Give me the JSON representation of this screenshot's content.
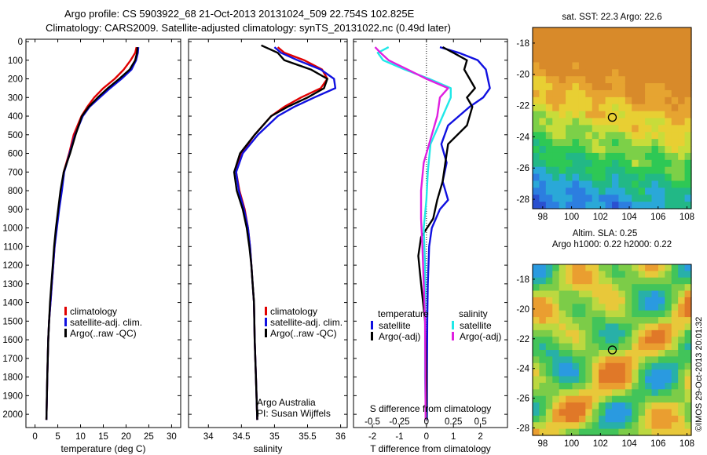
{
  "header": {
    "line1": "Argo profile: CS 5903922_68 21-Oct-2013 20131024_509 22.754S 102.825E",
    "line2": "Climatology: CARS2009. Satellite-adjusted climatology: synTS_20131022.nc (0.49d later)"
  },
  "colors": {
    "climatology": "#e00000",
    "satellite": "#1010e0",
    "argo": "#000000",
    "sat_salinity": "#20e8e8",
    "argo_salinity": "#e020e0"
  },
  "chart_data": [
    {
      "type": "line",
      "xlabel": "temperature (deg C)",
      "xlim": [
        -2,
        32
      ],
      "xticks": [
        0,
        5,
        10,
        15,
        20,
        25,
        30
      ],
      "ylim": [
        0,
        2050
      ],
      "yticks": [
        0,
        100,
        200,
        300,
        400,
        500,
        600,
        700,
        800,
        900,
        1000,
        1100,
        1200,
        1300,
        1400,
        1500,
        1600,
        1700,
        1800,
        1900,
        2000
      ],
      "legend": [
        "climatology",
        "satellite-adj. clim.",
        "Argo(..raw -QC)"
      ],
      "series": [
        {
          "name": "climatology",
          "color": "#e00000",
          "x": [
            22.3,
            22.0,
            21.0,
            19.5,
            17.5,
            15.0,
            13.0,
            11.5,
            10.2,
            8.5,
            7.5,
            6.3,
            5.8,
            5.2,
            4.7,
            4.3,
            4.0,
            3.7,
            3.4,
            3.1,
            2.9,
            2.7,
            2.5
          ],
          "y": [
            30,
            60,
            100,
            150,
            200,
            250,
            300,
            350,
            400,
            500,
            600,
            700,
            800,
            900,
            1000,
            1100,
            1200,
            1300,
            1400,
            1500,
            1600,
            1800,
            2030
          ]
        },
        {
          "name": "satellite-adj. clim.",
          "color": "#1010e0",
          "x": [
            22.7,
            22.6,
            22.2,
            21.2,
            19.0,
            16.5,
            14.2,
            12.0,
            10.5,
            8.8,
            7.6,
            6.4,
            5.9,
            5.3,
            4.8,
            4.3,
            4.0,
            3.7,
            3.4,
            3.1,
            2.9,
            2.7,
            2.5
          ],
          "y": [
            30,
            60,
            100,
            150,
            200,
            250,
            300,
            350,
            400,
            500,
            600,
            700,
            800,
            900,
            1000,
            1100,
            1200,
            1300,
            1400,
            1500,
            1600,
            1800,
            2030
          ]
        },
        {
          "name": "Argo(..raw -QC)",
          "color": "#000000",
          "x": [
            22.5,
            22.4,
            22.0,
            20.8,
            18.5,
            16.0,
            13.8,
            11.8,
            10.3,
            8.9,
            7.7,
            6.3,
            5.6,
            5.1,
            4.6,
            4.2,
            3.9,
            3.6,
            3.3,
            3.1,
            2.9,
            2.7,
            2.5
          ],
          "y": [
            30,
            60,
            100,
            150,
            200,
            250,
            300,
            350,
            400,
            500,
            600,
            700,
            800,
            900,
            1000,
            1100,
            1200,
            1300,
            1400,
            1500,
            1600,
            1800,
            2030
          ]
        }
      ]
    },
    {
      "type": "line",
      "xlabel": "salinity",
      "xlim": [
        33.7,
        36.1
      ],
      "xticks": [
        34,
        34.5,
        35,
        35.5,
        36
      ],
      "ylim": [
        0,
        2050
      ],
      "legend": [
        "climatology",
        "satellite-adj. clim.",
        "Argo(..raw -QC)"
      ],
      "annotation": [
        "Argo Australia",
        "PI: Susan Wijffels"
      ],
      "series": [
        {
          "name": "climatology",
          "color": "#e00000",
          "x": [
            35.05,
            35.15,
            35.45,
            35.72,
            35.8,
            35.7,
            35.4,
            35.15,
            34.95,
            34.7,
            34.5,
            34.42,
            34.47,
            34.55,
            34.6,
            34.63,
            34.65,
            34.67,
            34.69,
            34.7,
            34.72,
            34.74
          ],
          "y": [
            30,
            60,
            100,
            150,
            200,
            250,
            300,
            350,
            400,
            500,
            600,
            700,
            800,
            900,
            1000,
            1100,
            1200,
            1300,
            1400,
            1600,
            1800,
            2030
          ]
        },
        {
          "name": "satellite-adj. clim.",
          "color": "#1010e0",
          "x": [
            35.0,
            35.1,
            35.35,
            35.7,
            35.9,
            35.92,
            35.6,
            35.3,
            35.05,
            34.75,
            34.52,
            34.42,
            34.46,
            34.54,
            34.6,
            34.63,
            34.65,
            34.67,
            34.69,
            34.7,
            34.72,
            34.74
          ],
          "y": [
            30,
            60,
            100,
            150,
            200,
            250,
            300,
            350,
            400,
            500,
            600,
            700,
            800,
            900,
            1000,
            1100,
            1200,
            1300,
            1400,
            1600,
            1800,
            2030
          ]
        },
        {
          "name": "Argo(..raw -QC)",
          "color": "#000000",
          "x": [
            34.8,
            35.05,
            35.15,
            35.55,
            35.8,
            35.75,
            35.5,
            35.2,
            34.95,
            34.7,
            34.48,
            34.39,
            34.43,
            34.52,
            34.58,
            34.62,
            34.65,
            34.67,
            34.69,
            34.7,
            34.72,
            34.74
          ],
          "y": [
            20,
            60,
            100,
            150,
            200,
            250,
            300,
            350,
            400,
            500,
            600,
            700,
            800,
            900,
            1000,
            1100,
            1200,
            1300,
            1400,
            1600,
            1800,
            2030
          ]
        }
      ]
    },
    {
      "type": "line",
      "xlabel": "T difference from climatology",
      "xlabel_top": "S difference from climatology",
      "xlim": [
        -2.7,
        3.0
      ],
      "xticks": [
        -2,
        -1,
        0,
        1,
        2
      ],
      "sticks_values": [
        -0.5,
        -0.25,
        0,
        0.25,
        0.5
      ],
      "zero_line": true,
      "ylim": [
        0,
        2050
      ],
      "legend_title_left": "temperature",
      "legend_title_right": "salinity",
      "legend": [
        "satellite",
        "Argo(-adj)",
        "satellite",
        "Argo(-adj)"
      ],
      "series": [
        {
          "name": "satellite",
          "group": "temperature",
          "color": "#1010e0",
          "x": [
            0.5,
            1.2,
            1.9,
            2.2,
            2.35,
            2.1,
            1.6,
            0.8,
            0.55,
            0.75,
            0.6,
            0.8,
            0.5,
            0.2,
            0.1,
            0.05,
            0.03,
            0.02,
            0.02
          ],
          "y": [
            30,
            60,
            100,
            150,
            250,
            300,
            350,
            450,
            550,
            650,
            750,
            850,
            900,
            1000,
            1100,
            1300,
            1500,
            1800,
            2030
          ]
        },
        {
          "name": "Argo(-adj)",
          "group": "temperature",
          "color": "#000000",
          "x": [
            0.6,
            1.0,
            1.5,
            1.4,
            1.8,
            1.5,
            1.7,
            1.5,
            0.8,
            0.7,
            0.6,
            0.4,
            0.25,
            -0.2,
            -0.3,
            -0.2,
            -0.05,
            0.0,
            0.0
          ],
          "y": [
            30,
            60,
            100,
            150,
            250,
            300,
            350,
            450,
            550,
            650,
            750,
            850,
            950,
            1050,
            1150,
            1300,
            1500,
            1800,
            2030
          ]
        },
        {
          "name": "satellite",
          "group": "salinity",
          "color": "#20e8e8",
          "x": [
            -1.4,
            -1.8,
            -1.6,
            -0.8,
            0.1,
            0.9,
            0.9,
            0.6,
            0.15,
            0.05,
            0.0,
            -0.1,
            -0.05,
            -0.05,
            -0.05,
            -0.05,
            -0.02
          ],
          "y": [
            30,
            60,
            100,
            150,
            200,
            250,
            300,
            400,
            550,
            700,
            850,
            1000,
            1200,
            1400,
            1600,
            1800,
            2030
          ]
        },
        {
          "name": "Argo(-adj)",
          "group": "salinity",
          "color": "#e020e0",
          "x": [
            -1.9,
            -1.7,
            -1.4,
            -0.7,
            0.0,
            0.8,
            0.5,
            0.4,
            0.2,
            -0.1,
            -0.2,
            -0.2,
            -0.15,
            -0.1,
            -0.05,
            -0.03
          ],
          "y": [
            30,
            60,
            100,
            150,
            200,
            250,
            300,
            400,
            500,
            650,
            800,
            950,
            1100,
            1300,
            1500,
            2030
          ]
        }
      ]
    },
    {
      "type": "heatmap",
      "title": "sat. SST: 22.3  Argo: 22.6",
      "xlim": [
        97.3,
        108.3
      ],
      "xticks": [
        98,
        100,
        102,
        104,
        106,
        108
      ],
      "ylim": [
        -28.6,
        -17.0
      ],
      "yticks": [
        -18,
        -20,
        -22,
        -24,
        -26,
        -28
      ],
      "marker": [
        102.825,
        -22.754
      ]
    },
    {
      "type": "heatmap",
      "title_lines": [
        "Altim. SLA: 0.25",
        "Argo h1000: 0.22 h2000: 0.22"
      ],
      "xlim": [
        97.3,
        108.3
      ],
      "xticks": [
        98,
        100,
        102,
        104,
        106,
        108
      ],
      "ylim": [
        -28.5,
        -17.0
      ],
      "yticks": [
        -18,
        -20,
        -22,
        -24,
        -26,
        -28
      ],
      "marker": [
        102.825,
        -22.754
      ]
    }
  ],
  "footer": {
    "credit": "©IMOS 29-Oct-2013 20:01:32"
  }
}
